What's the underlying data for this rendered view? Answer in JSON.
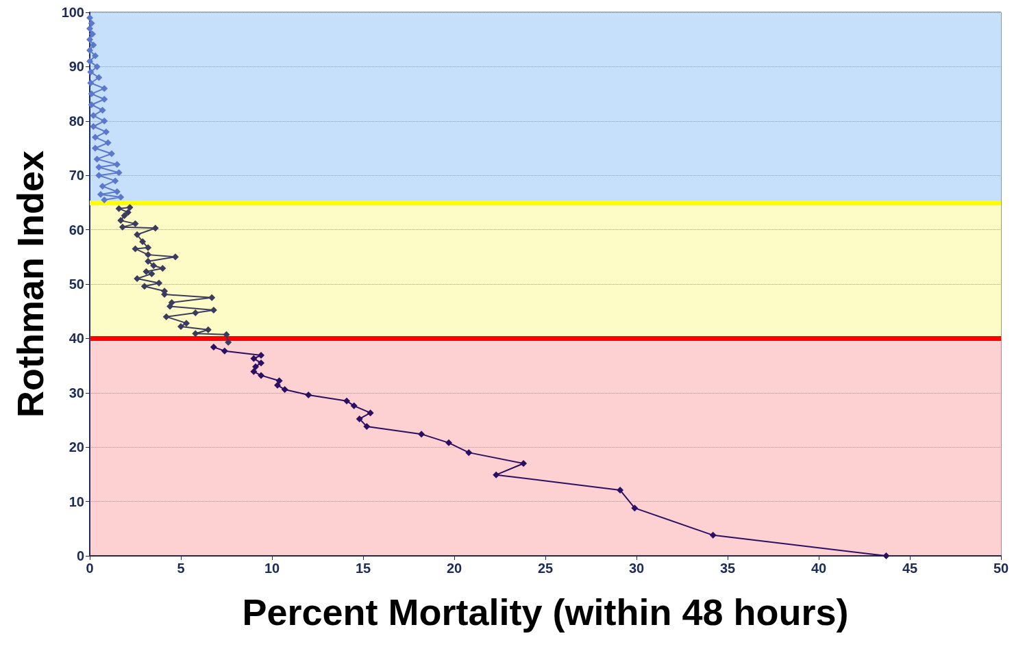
{
  "chart_data": {
    "type": "line",
    "xlabel": "Percent Mortality (within 48 hours)",
    "ylabel": "Rothman Index",
    "xlim": [
      0,
      50
    ],
    "xticks": [
      0,
      5,
      10,
      15,
      20,
      25,
      30,
      35,
      40,
      45,
      50
    ],
    "ylim": [
      0,
      100
    ],
    "yticks": [
      0,
      10,
      20,
      30,
      40,
      50,
      60,
      70,
      80,
      90,
      100
    ],
    "grid": "y",
    "marker": "diamond",
    "line_style": "solid",
    "bands": [
      {
        "axis": "y",
        "from": 65,
        "to": 100,
        "color": "#c6e0fb"
      },
      {
        "axis": "y",
        "from": 40,
        "to": 65,
        "color": "#fefcc6"
      },
      {
        "axis": "y",
        "from": 0,
        "to": 40,
        "color": "#fdd0d2"
      }
    ],
    "ref_lines": [
      {
        "axis": "y",
        "value": 65,
        "color": "#ffff00"
      },
      {
        "axis": "y",
        "value": 40,
        "color": "#ff0000"
      }
    ],
    "series": [
      {
        "color": "#2b0f63",
        "x": [
          43.7,
          34.2,
          29.9,
          29.1,
          22.3,
          23.8,
          20.8,
          19.7,
          18.2,
          15.2,
          14.8,
          15.4,
          14.5,
          14.1,
          12.0,
          10.7,
          10.3,
          10.4,
          9.4,
          9.0,
          9.1,
          9.4,
          9.0,
          9.4,
          7.4,
          6.8
        ],
        "values": [
          0,
          3.8,
          8.8,
          12.1,
          14.9,
          17.0,
          19.0,
          20.8,
          22.4,
          23.8,
          25.2,
          26.3,
          27.6,
          28.5,
          29.6,
          30.6,
          31.4,
          32.2,
          33.2,
          33.9,
          34.8,
          35.5,
          36.3,
          36.9,
          37.7,
          38.4
        ]
      },
      {
        "color": "#3b3b5e",
        "x": [
          7.6,
          7.5,
          5.8,
          6.5,
          5.0,
          5.3,
          4.2,
          5.8,
          6.8,
          4.4,
          4.5,
          6.7,
          4.1,
          4.1,
          3.0,
          3.8,
          2.6,
          3.4,
          3.1,
          4.0,
          3.5,
          3.2,
          4.7,
          3.2,
          2.5,
          3.2,
          2.9,
          2.6,
          3.6,
          1.8,
          2.5,
          1.7,
          1.9,
          2.1,
          1.6,
          2.2
        ],
        "values": [
          39.3,
          40.7,
          40.9,
          41.6,
          42.2,
          42.8,
          44.0,
          44.7,
          45.2,
          45.9,
          46.6,
          47.5,
          48.1,
          48.7,
          49.6,
          50.2,
          51.0,
          51.9,
          52.3,
          52.9,
          53.4,
          54.2,
          55.0,
          55.4,
          56.5,
          56.7,
          57.8,
          59.1,
          60.3,
          60.5,
          61.1,
          61.7,
          62.6,
          63.2,
          63.9,
          64.1
        ]
      },
      {
        "color": "#5b78cc",
        "x": [
          0.8,
          1.7,
          0.6,
          1.5,
          0.7,
          1.4,
          0.5,
          1.6,
          0.5,
          1.5,
          0.4,
          1.2,
          0.3,
          1.0,
          0.3,
          0.9,
          0.2,
          0.8,
          0.2,
          0.7,
          0.1,
          0.8,
          0.1,
          0.8,
          0.05,
          0.5,
          0.05,
          0.4,
          0.0,
          0.3,
          0.0,
          0.2,
          0.0,
          0.15,
          0.0,
          0.1,
          0.0
        ],
        "values": [
          65.5,
          66,
          66.5,
          67,
          68,
          69,
          70,
          70.5,
          71.5,
          72,
          73,
          74,
          75,
          76,
          77,
          78,
          79,
          80,
          81,
          82,
          83,
          84,
          85,
          86,
          87,
          88,
          89,
          90,
          91,
          92,
          93,
          94,
          95,
          96,
          97,
          98,
          99
        ]
      }
    ]
  }
}
